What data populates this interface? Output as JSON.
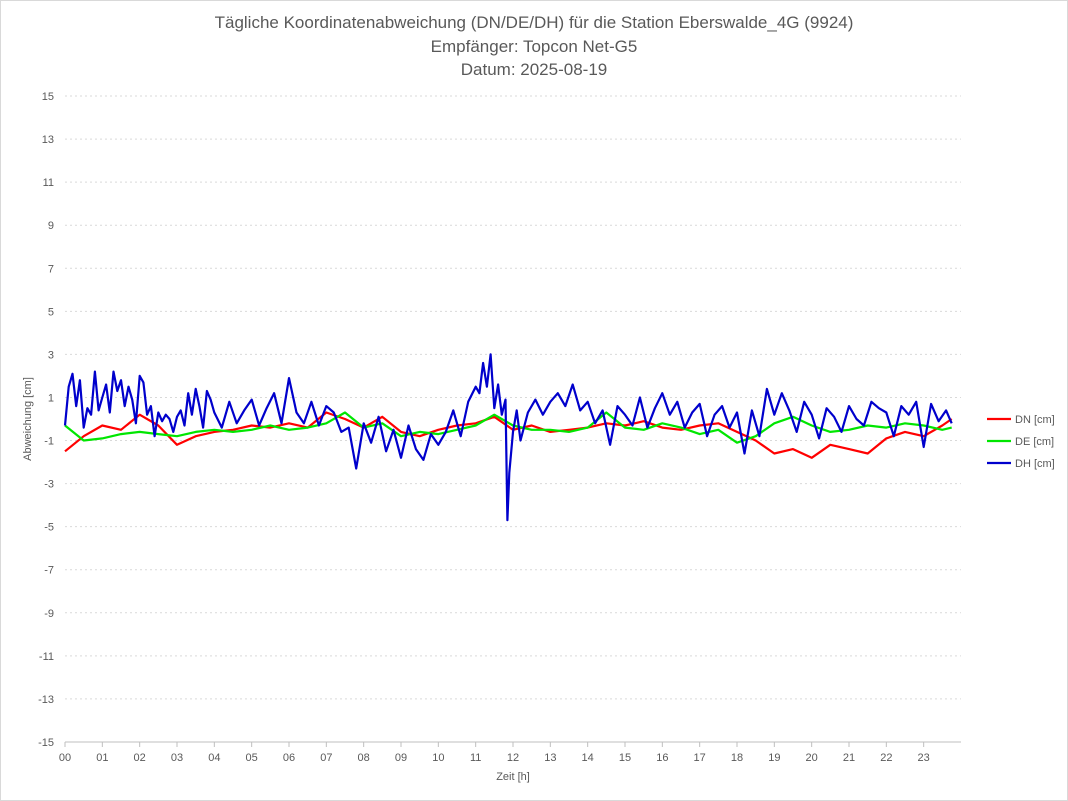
{
  "chart_data": {
    "type": "line",
    "title": [
      "Tägliche Koordinatenabweichung (DN/DE/DH) für die Station Eberswalde_4G (9924)",
      "Empfänger: Topcon Net-G5",
      "Datum: 2025-08-19"
    ],
    "xlabel": "Zeit [h]",
    "ylabel": "Abweichung [cm]",
    "xlim": [
      0,
      24
    ],
    "ylim": [
      -15,
      15
    ],
    "xticks": [
      "00",
      "01",
      "02",
      "03",
      "04",
      "05",
      "06",
      "07",
      "08",
      "09",
      "10",
      "11",
      "12",
      "13",
      "14",
      "15",
      "16",
      "17",
      "18",
      "19",
      "20",
      "21",
      "22",
      "23"
    ],
    "yticks": [
      15,
      13,
      11,
      9,
      7,
      5,
      3,
      1,
      -1,
      -3,
      -5,
      -7,
      -9,
      -11,
      -13,
      -15
    ],
    "grid": "horizontal dotted",
    "legend_position": "right",
    "series": [
      {
        "name": "DN [cm]",
        "color": "#ff0000",
        "x": [
          0,
          0.5,
          1,
          1.5,
          2,
          2.5,
          3,
          3.5,
          4,
          4.5,
          5,
          5.5,
          6,
          6.5,
          7,
          7.5,
          8,
          8.5,
          9,
          9.5,
          10,
          10.5,
          11,
          11.5,
          12,
          12.5,
          13,
          13.5,
          14,
          14.5,
          15,
          15.5,
          16,
          16.5,
          17,
          17.5,
          18,
          18.5,
          19,
          19.5,
          20,
          20.5,
          21,
          21.5,
          22,
          22.5,
          23,
          23.5,
          23.75
        ],
        "y": [
          -1.5,
          -0.8,
          -0.3,
          -0.5,
          0.2,
          -0.3,
          -1.2,
          -0.8,
          -0.6,
          -0.5,
          -0.3,
          -0.4,
          -0.2,
          -0.4,
          0.3,
          0.0,
          -0.4,
          0.1,
          -0.6,
          -0.8,
          -0.5,
          -0.3,
          -0.2,
          0.1,
          -0.5,
          -0.3,
          -0.6,
          -0.5,
          -0.4,
          -0.2,
          -0.3,
          -0.1,
          -0.4,
          -0.5,
          -0.3,
          -0.2,
          -0.6,
          -1.0,
          -1.6,
          -1.4,
          -1.8,
          -1.2,
          -1.4,
          -1.6,
          -0.9,
          -0.6,
          -0.8,
          -0.3,
          0.0
        ]
      },
      {
        "name": "DE [cm]",
        "color": "#00e600",
        "x": [
          0,
          0.5,
          1,
          1.5,
          2,
          2.5,
          3,
          3.5,
          4,
          4.5,
          5,
          5.5,
          6,
          6.5,
          7,
          7.5,
          8,
          8.5,
          9,
          9.5,
          10,
          10.5,
          11,
          11.5,
          12,
          12.5,
          13,
          13.5,
          14,
          14.5,
          15,
          15.5,
          16,
          16.5,
          17,
          17.5,
          18,
          18.5,
          19,
          19.5,
          20,
          20.5,
          21,
          21.5,
          22,
          22.5,
          23,
          23.5,
          23.75
        ],
        "y": [
          -0.3,
          -1.0,
          -0.9,
          -0.7,
          -0.6,
          -0.7,
          -0.8,
          -0.6,
          -0.5,
          -0.6,
          -0.5,
          -0.3,
          -0.5,
          -0.4,
          -0.2,
          0.3,
          -0.4,
          -0.2,
          -0.8,
          -0.6,
          -0.7,
          -0.5,
          -0.3,
          0.2,
          -0.3,
          -0.5,
          -0.5,
          -0.6,
          -0.4,
          0.3,
          -0.4,
          -0.5,
          -0.2,
          -0.4,
          -0.7,
          -0.5,
          -1.1,
          -0.8,
          -0.2,
          0.1,
          -0.3,
          -0.6,
          -0.5,
          -0.3,
          -0.4,
          -0.2,
          -0.3,
          -0.5,
          -0.4
        ]
      },
      {
        "name": "DH [cm]",
        "color": "#0000cc",
        "x": [
          0,
          0.1,
          0.2,
          0.3,
          0.4,
          0.5,
          0.6,
          0.7,
          0.8,
          0.9,
          1.0,
          1.1,
          1.2,
          1.3,
          1.4,
          1.5,
          1.6,
          1.7,
          1.8,
          1.9,
          2.0,
          2.1,
          2.2,
          2.3,
          2.4,
          2.5,
          2.6,
          2.7,
          2.8,
          2.9,
          3.0,
          3.1,
          3.2,
          3.3,
          3.4,
          3.5,
          3.6,
          3.7,
          3.8,
          3.9,
          4.0,
          4.2,
          4.4,
          4.6,
          4.8,
          5.0,
          5.2,
          5.4,
          5.6,
          5.8,
          6.0,
          6.2,
          6.4,
          6.6,
          6.8,
          7.0,
          7.2,
          7.4,
          7.6,
          7.8,
          8.0,
          8.2,
          8.4,
          8.6,
          8.8,
          9.0,
          9.2,
          9.4,
          9.6,
          9.8,
          10.0,
          10.2,
          10.4,
          10.6,
          10.8,
          11.0,
          11.1,
          11.2,
          11.3,
          11.4,
          11.5,
          11.6,
          11.7,
          11.8,
          11.85,
          11.9,
          12.0,
          12.1,
          12.2,
          12.4,
          12.6,
          12.8,
          13.0,
          13.2,
          13.4,
          13.6,
          13.8,
          14.0,
          14.2,
          14.4,
          14.6,
          14.8,
          15.0,
          15.2,
          15.4,
          15.6,
          15.8,
          16.0,
          16.2,
          16.4,
          16.6,
          16.8,
          17.0,
          17.2,
          17.4,
          17.6,
          17.8,
          18.0,
          18.2,
          18.4,
          18.6,
          18.8,
          19.0,
          19.2,
          19.4,
          19.6,
          19.8,
          20.0,
          20.2,
          20.4,
          20.6,
          20.8,
          21.0,
          21.2,
          21.4,
          21.6,
          21.8,
          22.0,
          22.2,
          22.4,
          22.6,
          22.8,
          23.0,
          23.2,
          23.4,
          23.6,
          23.75
        ],
        "y": [
          -0.3,
          1.5,
          2.1,
          0.6,
          1.8,
          -0.4,
          0.5,
          0.2,
          2.2,
          0.4,
          1.0,
          1.6,
          0.3,
          2.2,
          1.3,
          1.8,
          0.6,
          1.5,
          0.9,
          -0.2,
          2.0,
          1.7,
          0.2,
          0.6,
          -0.8,
          0.3,
          -0.1,
          0.2,
          0.0,
          -0.6,
          0.1,
          0.4,
          -0.3,
          1.2,
          0.2,
          1.4,
          0.6,
          -0.4,
          1.3,
          0.9,
          0.3,
          -0.4,
          0.8,
          -0.2,
          0.4,
          0.9,
          -0.3,
          0.5,
          1.2,
          -0.2,
          1.9,
          0.3,
          -0.2,
          0.8,
          -0.3,
          0.6,
          0.3,
          -0.6,
          -0.4,
          -2.3,
          -0.2,
          -1.1,
          0.1,
          -1.5,
          -0.5,
          -1.8,
          -0.3,
          -1.4,
          -1.9,
          -0.7,
          -1.2,
          -0.6,
          0.4,
          -0.8,
          0.8,
          1.5,
          1.2,
          2.6,
          1.5,
          3.0,
          0.5,
          1.6,
          0.2,
          0.9,
          -4.7,
          -2.5,
          -0.6,
          0.4,
          -1.0,
          0.3,
          0.9,
          0.2,
          0.8,
          1.2,
          0.6,
          1.6,
          0.4,
          0.8,
          -0.2,
          0.4,
          -1.2,
          0.6,
          0.2,
          -0.3,
          1.0,
          -0.4,
          0.5,
          1.2,
          0.2,
          0.8,
          -0.4,
          0.3,
          0.7,
          -0.8,
          0.2,
          0.6,
          -0.4,
          0.3,
          -1.6,
          0.4,
          -0.8,
          1.4,
          0.2,
          1.2,
          0.4,
          -0.6,
          0.8,
          0.2,
          -0.9,
          0.5,
          0.1,
          -0.6,
          0.6,
          0.0,
          -0.3,
          0.8,
          0.5,
          0.3,
          -0.8,
          0.6,
          0.2,
          0.8,
          -1.3,
          0.7,
          -0.1,
          0.4,
          -0.2
        ]
      }
    ]
  }
}
